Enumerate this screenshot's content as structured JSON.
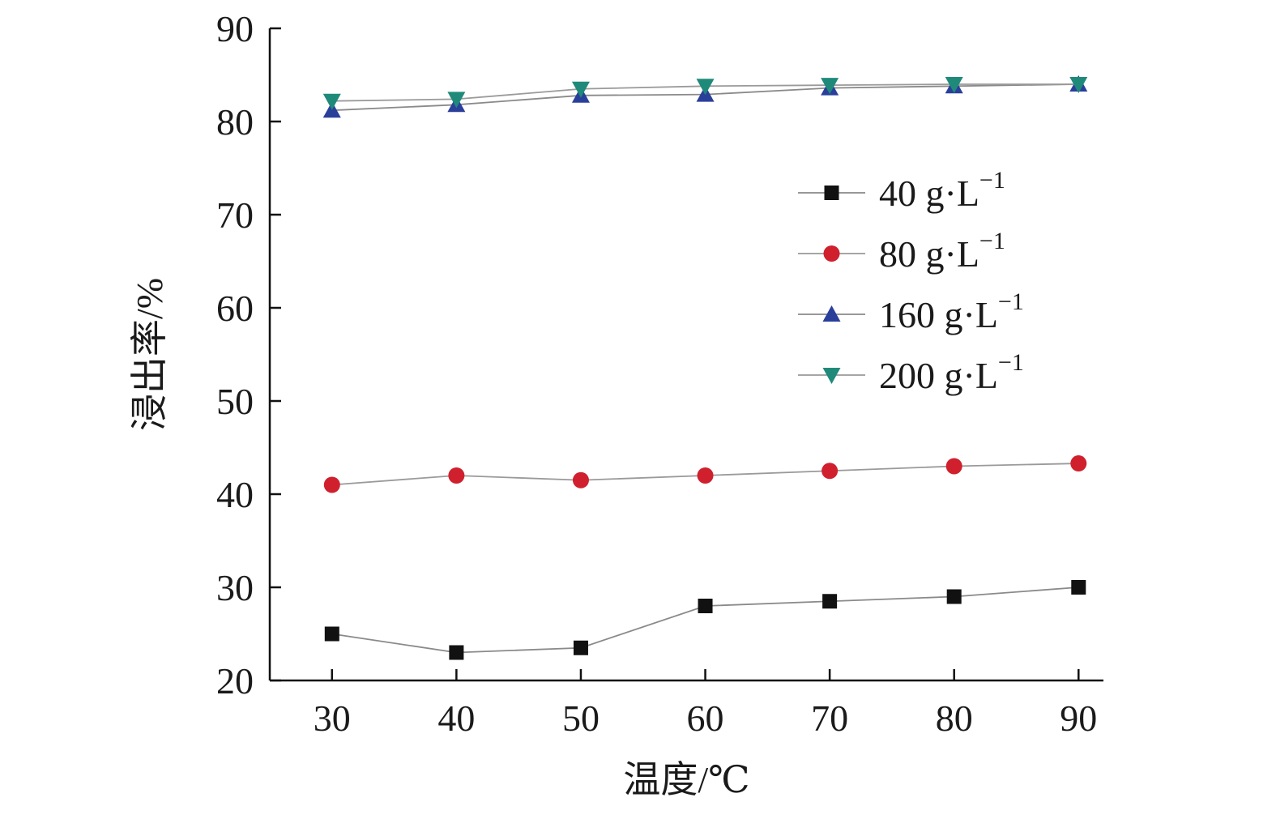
{
  "chart_data": {
    "type": "line",
    "x": [
      30,
      40,
      50,
      60,
      70,
      80,
      90
    ],
    "xlabel": "温度/℃",
    "ylabel": "浸出率/%",
    "xlim": [
      25,
      92
    ],
    "ylim": [
      20,
      90
    ],
    "xticks": [
      30,
      40,
      50,
      60,
      70,
      80,
      90
    ],
    "yticks": [
      20,
      30,
      40,
      50,
      60,
      70,
      80,
      90
    ],
    "grid": false,
    "legend_position": "right",
    "series": [
      {
        "name": "40 g·L",
        "superscript": "−1",
        "marker": "square",
        "color": "#111111",
        "line_color": "#8a8a8a",
        "values": [
          25.0,
          23.0,
          23.5,
          28.0,
          28.5,
          29.0,
          30.0
        ]
      },
      {
        "name": "80 g·L",
        "superscript": "−1",
        "marker": "circle",
        "color": "#d0202e",
        "line_color": "#9a9a9a",
        "values": [
          41.0,
          42.0,
          41.5,
          42.0,
          42.5,
          43.0,
          43.3
        ]
      },
      {
        "name": "160 g·L",
        "superscript": "−1",
        "marker": "triangle-up",
        "color": "#2a3f9a",
        "line_color": "#8a8a8a",
        "values": [
          81.2,
          81.8,
          82.8,
          82.9,
          83.6,
          83.8,
          84.0
        ]
      },
      {
        "name": "200 g·L",
        "superscript": "−1",
        "marker": "triangle-down",
        "color": "#1f8a7a",
        "line_color": "#9a9a9a",
        "values": [
          82.2,
          82.4,
          83.5,
          83.8,
          83.9,
          84.0,
          84.0
        ]
      }
    ]
  }
}
